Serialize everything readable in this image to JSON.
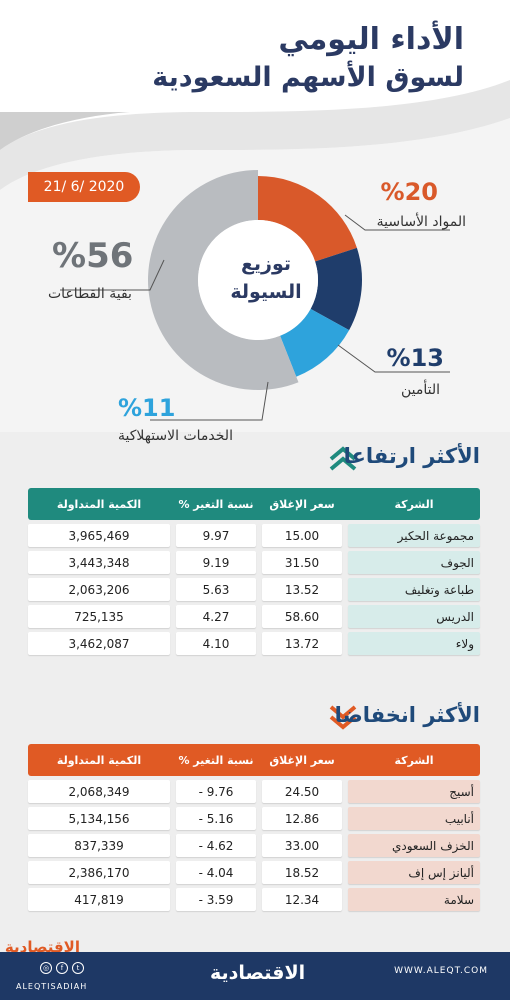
{
  "header": {
    "title_line1": "الأداء اليومي",
    "title_line2": "لسوق الأسهم السعودية",
    "date": "21/ 6/ 2020"
  },
  "distribution": {
    "center_line1": "توزيع",
    "center_line2": "السيولة",
    "slices": [
      {
        "label": "المواد الأساسية",
        "pct_text": "%20",
        "value": 20,
        "color": "#d9592a"
      },
      {
        "label": "التأمين",
        "pct_text": "%13",
        "value": 13,
        "color": "#1f3d6b"
      },
      {
        "label": "الخدمات الاستهلاكية",
        "pct_text": "%11",
        "value": 11,
        "color": "#2ea3dc"
      },
      {
        "label": "بقية القطاعات",
        "pct_text": "%56",
        "value": 56,
        "color": "#b9bcc0"
      }
    ]
  },
  "gainers": {
    "heading": "الأكثر ارتفاعا",
    "header_color": "#1f8a7e",
    "cell_tint": "#d7ecea",
    "columns": {
      "name": "الشركة",
      "close": "سعر الإغلاق",
      "change": "نسبة التغير %",
      "volume": "الكمية المتداولة"
    },
    "rows": [
      {
        "name": "مجموعة الحكير",
        "close": "15.00",
        "change": "9.97",
        "volume": "3,965,469"
      },
      {
        "name": "الجوف",
        "close": "31.50",
        "change": "9.19",
        "volume": "3,443,348"
      },
      {
        "name": "طباعة وتغليف",
        "close": "13.52",
        "change": "5.63",
        "volume": "2,063,206"
      },
      {
        "name": "الدريس",
        "close": "58.60",
        "change": "4.27",
        "volume": "725,135"
      },
      {
        "name": "ولاء",
        "close": "13.72",
        "change": "4.10",
        "volume": "3,462,087"
      }
    ]
  },
  "losers": {
    "heading": "الأكثر انخفاضا",
    "header_color": "#e05a24",
    "cell_tint": "#f2d8cf",
    "columns": {
      "name": "الشركة",
      "close": "سعر الإغلاق",
      "change": "نسبة التغير %",
      "volume": "الكمية المتداولة"
    },
    "rows": [
      {
        "name": "أسيج",
        "close": "24.50",
        "change": "9.76 -",
        "volume": "2,068,349"
      },
      {
        "name": "أنابيب",
        "close": "12.86",
        "change": "5.16 -",
        "volume": "5,134,156"
      },
      {
        "name": "الخزف السعودي",
        "close": "33.00",
        "change": "4.62 -",
        "volume": "837,339"
      },
      {
        "name": "أليانز إس إف",
        "close": "18.52",
        "change": "4.04 -",
        "volume": "2,386,170"
      },
      {
        "name": "سلامة",
        "close": "12.34",
        "change": "3.59 -",
        "volume": "417,819"
      }
    ]
  },
  "footer": {
    "brand_small": "الاقتصادية",
    "brand": "الاقتصادية",
    "handle": "ALEQTISADIAH",
    "website": "WWW.ALEQT.COM",
    "social": [
      "instagram-icon",
      "facebook-icon",
      "twitter-icon"
    ]
  }
}
